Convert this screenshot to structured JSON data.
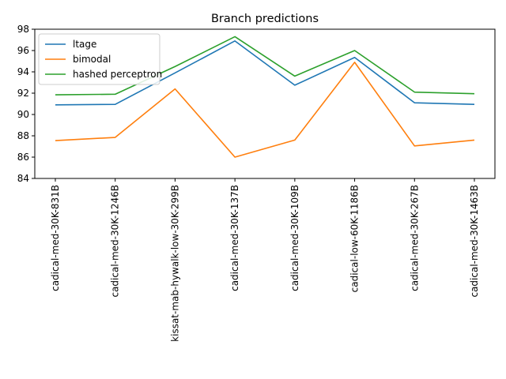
{
  "chart_data": {
    "type": "line",
    "title": "Branch predictions",
    "xlabel": "",
    "ylabel": "",
    "categories": [
      "cadical-med-30K-831B",
      "cadical-med-30K-1246B",
      "kissat-mab-hywalk-low-30K-299B",
      "cadical-med-30K-137B",
      "cadical-med-30K-109B",
      "cadical-low-60K-1186B",
      "cadical-med-30K-267B",
      "cadical-med-30K-1463B"
    ],
    "ylim": [
      84,
      98
    ],
    "yticks": [
      84,
      86,
      88,
      90,
      92,
      94,
      96,
      98
    ],
    "grid": false,
    "legend": "upper-left",
    "series": [
      {
        "name": "ltage",
        "color": "#1f77b4",
        "values": [
          90.9,
          90.95,
          93.9,
          96.9,
          92.75,
          95.35,
          91.1,
          90.95
        ]
      },
      {
        "name": "bimodal",
        "color": "#ff7f0e",
        "values": [
          87.55,
          87.85,
          92.4,
          86.0,
          87.6,
          94.9,
          87.05,
          87.6
        ]
      },
      {
        "name": "hashed perceptron",
        "color": "#2ca02c",
        "values": [
          91.85,
          91.9,
          94.5,
          97.3,
          93.6,
          96.0,
          92.1,
          91.95
        ]
      }
    ]
  }
}
